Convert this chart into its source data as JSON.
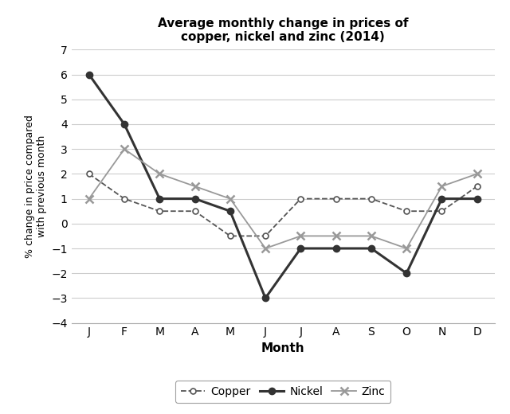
{
  "title": "Average monthly change in prices of\ncopper, nickel and zinc (2014)",
  "xlabel": "Month",
  "ylabel": "% change in price compared\nwith previous month",
  "months": [
    "J",
    "F",
    "M",
    "A",
    "M",
    "J",
    "J",
    "A",
    "S",
    "O",
    "N",
    "D"
  ],
  "copper": [
    2,
    1,
    0.5,
    0.5,
    -0.5,
    -0.5,
    1,
    1,
    1,
    0.5,
    0.5,
    1.5
  ],
  "nickel": [
    6,
    4,
    1,
    1,
    0.5,
    -3,
    -1,
    -1,
    -1,
    -2,
    1,
    1
  ],
  "zinc": [
    1,
    3,
    2,
    1.5,
    1,
    -1,
    -0.5,
    -0.5,
    -0.5,
    -1,
    1.5,
    2
  ],
  "ylim": [
    -4,
    7
  ],
  "yticks": [
    -4,
    -3,
    -2,
    -1,
    0,
    1,
    2,
    3,
    4,
    5,
    6,
    7
  ],
  "copper_color": "#555555",
  "nickel_color": "#333333",
  "zinc_color": "#999999",
  "bg_color": "#ffffff",
  "grid_color": "#cccccc"
}
